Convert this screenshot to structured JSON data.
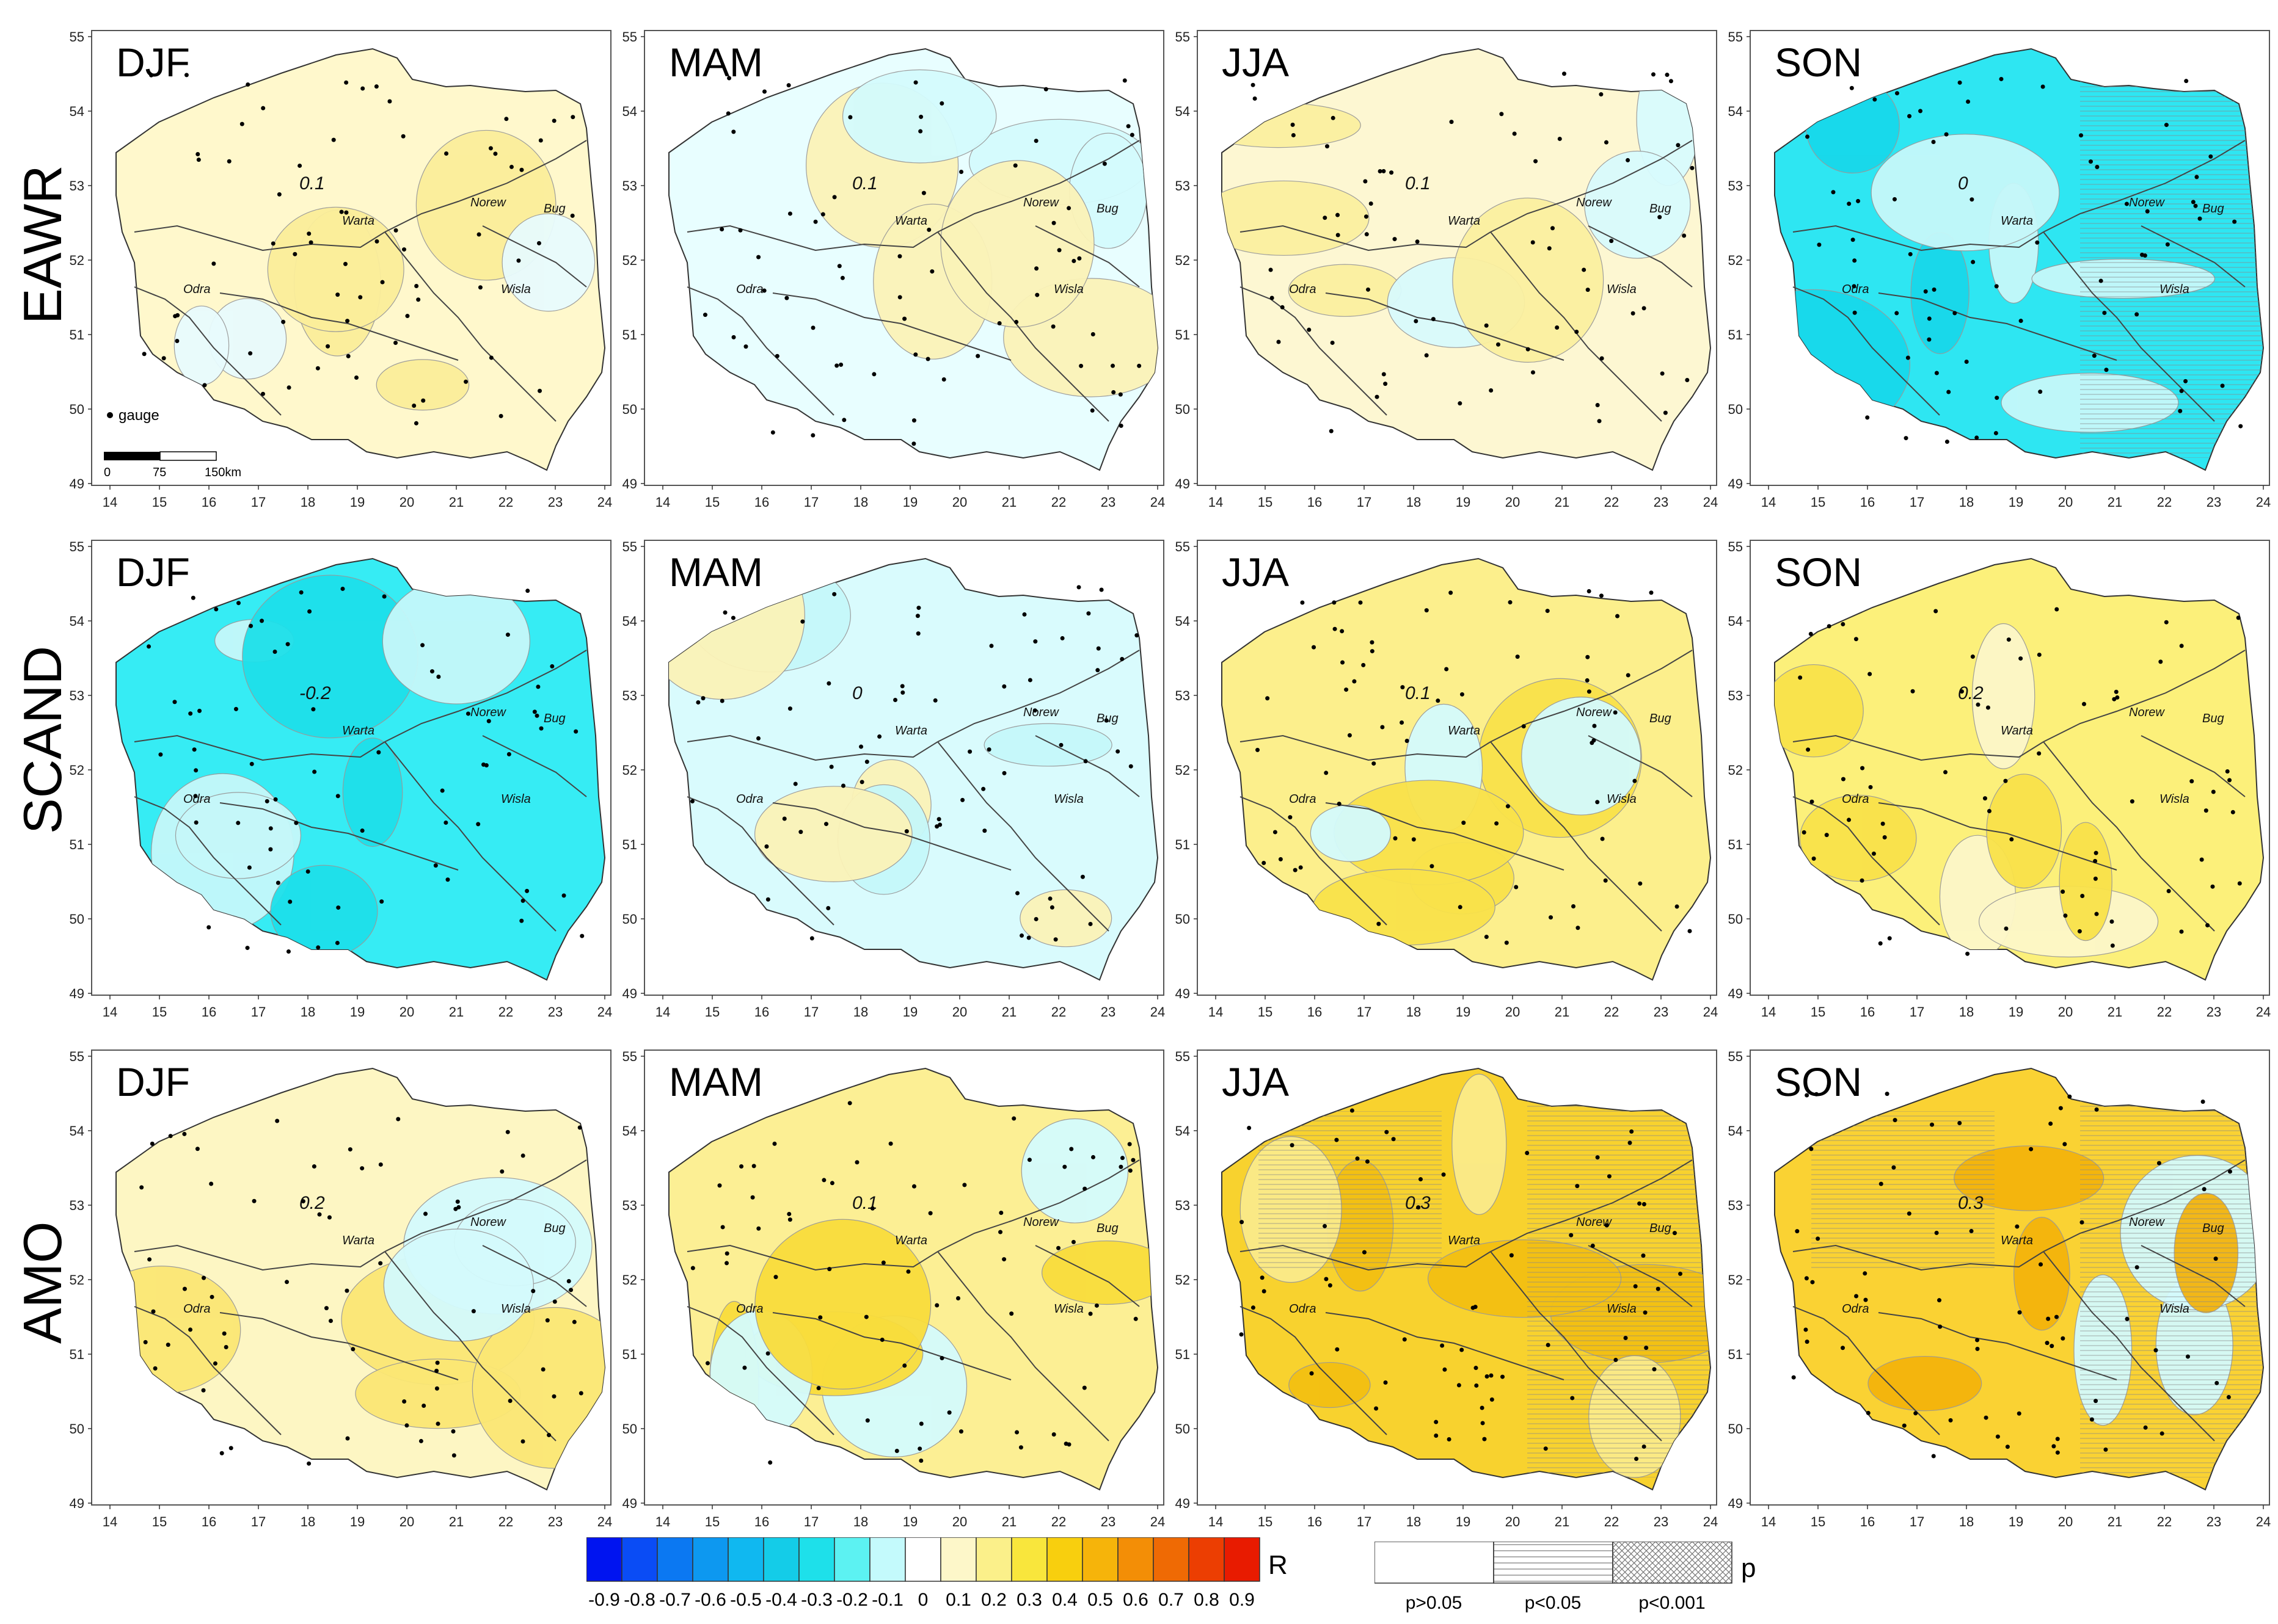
{
  "rows": [
    {
      "label": "EAWR"
    },
    {
      "label": "SCAND"
    },
    {
      "label": "AMO"
    }
  ],
  "seasons": [
    "DJF",
    "MAM",
    "JJA",
    "SON"
  ],
  "axis": {
    "x_ticks": [
      "14",
      "15",
      "16",
      "17",
      "18",
      "19",
      "20",
      "21",
      "22",
      "23",
      "24"
    ],
    "y_ticks": [
      "55",
      "54",
      "53",
      "52",
      "51",
      "50",
      "49"
    ]
  },
  "rivers": [
    "Warta",
    "Odra",
    "Norew",
    "Bug",
    "Wisla"
  ],
  "map_extras": {
    "gauge_label": "gauge",
    "scale_labels": [
      "0",
      "75",
      "150km"
    ]
  },
  "panel_fill": [
    [
      "#fff8cc",
      "#e8feff",
      "#fdf7d2",
      "#2ee6f2"
    ],
    [
      "#36ecf4",
      "#d9fbfd",
      "#fcef8c",
      "#fcf07a"
    ],
    [
      "#fdf6c3",
      "#fcef94",
      "#f8d22e",
      "#fad233"
    ]
  ],
  "contour_labels": [
    [
      "0.1",
      "0.1",
      "0.1",
      "0"
    ],
    [
      "-0.2",
      "0",
      "0.1",
      "0.2"
    ],
    [
      "0.2",
      "0.1",
      "0.3",
      "0.3"
    ]
  ],
  "legend_r": {
    "label": "R",
    "ticks": [
      "-0.9",
      "-0.8",
      "-0.7",
      "-0.6",
      "-0.5",
      "-0.4",
      "-0.3",
      "-0.2",
      "-0.1",
      "0",
      "0.1",
      "0.2",
      "0.3",
      "0.4",
      "0.5",
      "0.6",
      "0.7",
      "0.8",
      "0.9"
    ],
    "colors": [
      "#0014f0",
      "#0a4cf5",
      "#0b78f2",
      "#0d98f0",
      "#10b8f0",
      "#14cce8",
      "#1ee0ea",
      "#5cf2f2",
      "#c4fafc",
      "#ffffff",
      "#fdf7c9",
      "#fbf08a",
      "#f9e63c",
      "#f8cf0e",
      "#f6b40a",
      "#f38e06",
      "#ef6a04",
      "#ec3e02",
      "#e81b00"
    ]
  },
  "legend_p": {
    "label": "p",
    "items": [
      "p>0.05",
      "p<0.05",
      "p<0.001"
    ]
  }
}
